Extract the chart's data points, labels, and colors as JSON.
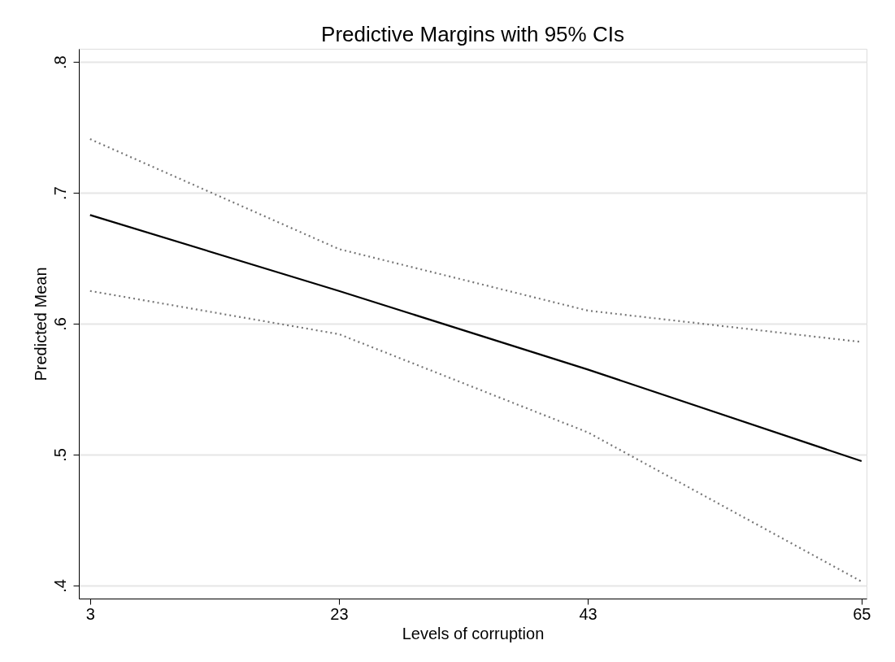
{
  "chart_data": {
    "type": "line",
    "title": "Predictive Margins with 95% CIs",
    "xlabel": "Levels of corruption",
    "ylabel": "Predicted Mean",
    "x": [
      3,
      23,
      43,
      65
    ],
    "series": [
      {
        "color": "#000000",
        "values": [
          0.683,
          0.625,
          0.565,
          0.495
        ],
        "line_style": "solid"
      },
      {
        "color": "#777777",
        "values": [
          0.741,
          0.657,
          0.61,
          0.586
        ],
        "line_style": "dotted"
      },
      {
        "color": "#777777",
        "values": [
          0.625,
          0.592,
          0.517,
          0.403
        ],
        "line_style": "dotted"
      }
    ],
    "xlim": [
      2.1,
      65.4
    ],
    "ylim": [
      0.39,
      0.81
    ],
    "xticks": [
      3,
      23,
      43,
      65
    ],
    "yticks": [
      {
        "value": 0.4,
        "label": ".4"
      },
      {
        "value": 0.5,
        "label": ".5"
      },
      {
        "value": 0.6,
        "label": ".6"
      },
      {
        "value": 0.7,
        "label": ".7"
      },
      {
        "value": 0.8,
        "label": ".8"
      }
    ],
    "grid": "y",
    "marker": "none",
    "legend": false
  }
}
